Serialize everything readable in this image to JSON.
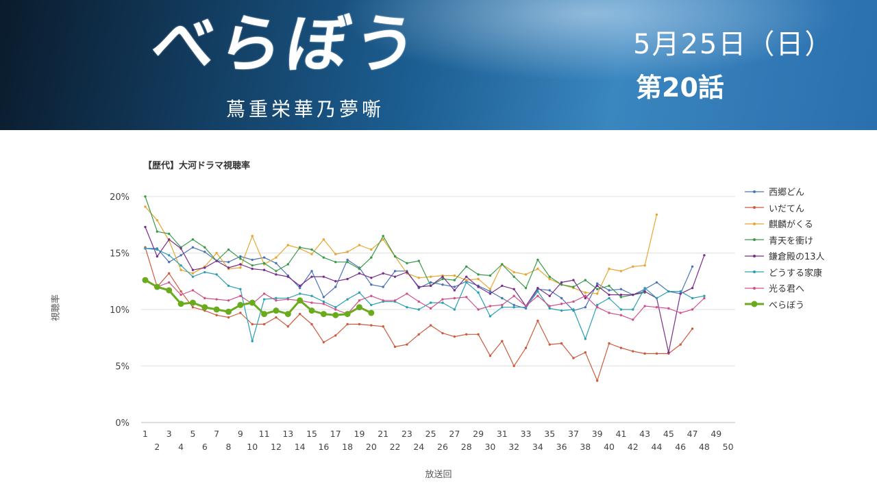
{
  "header": {
    "show_title": "べらぼう",
    "show_subtitle": "蔦重栄華乃夢噺",
    "air_date": "5月25日（日）",
    "episode": "第20話"
  },
  "chart_data": {
    "type": "line",
    "title": "【歴代】大河ドラマ視聴率",
    "xlabel": "放送回",
    "ylabel": "視聴率",
    "ylim": [
      0,
      20
    ],
    "y_ticks": [
      "0%",
      "5%",
      "10%",
      "15%",
      "20%"
    ],
    "x_ticks": [
      "1",
      "2",
      "3",
      "4",
      "5",
      "6",
      "7",
      "8",
      "9",
      "10",
      "11",
      "12",
      "13",
      "14",
      "15",
      "16",
      "17",
      "18",
      "19",
      "20",
      "21",
      "22",
      "23",
      "24",
      "25",
      "26",
      "27",
      "28",
      "29",
      "30",
      "31",
      "32",
      "33",
      "34",
      "35",
      "36",
      "37",
      "38",
      "39",
      "40",
      "41",
      "42",
      "43",
      "44",
      "45",
      "46",
      "47",
      "48",
      "49",
      "50"
    ],
    "grid": true,
    "legend_position": "right",
    "series": [
      {
        "name": "西郷どん",
        "color": "#4a74b8",
        "values": [
          15.4,
          15.4,
          14.2,
          14.8,
          15.5,
          15.1,
          14.3,
          14.2,
          14.7,
          14.4,
          14.6,
          14.1,
          13.0,
          11.9,
          13.4,
          11.1,
          12.0,
          14.4,
          13.7,
          12.2,
          12.0,
          13.4,
          13.4,
          11.9,
          12.4,
          12.2,
          12.0,
          12.5,
          12.1,
          11.6,
          11.0,
          10.4,
          10.1,
          11.8,
          11.7,
          11.0,
          9.9,
          10.2,
          12.3,
          11.7,
          11.8,
          11.3,
          11.8,
          12.4,
          11.6,
          11.4,
          13.8
        ]
      },
      {
        "name": "いだてん",
        "color": "#cd5a3c",
        "values": [
          15.5,
          12.0,
          13.2,
          11.6,
          10.2,
          9.9,
          9.5,
          9.3,
          9.7,
          8.7,
          8.7,
          9.3,
          8.5,
          9.6,
          8.7,
          7.1,
          7.7,
          8.7,
          8.7,
          8.6,
          8.5,
          6.7,
          6.9,
          7.8,
          8.6,
          7.9,
          7.6,
          7.8,
          7.8,
          5.9,
          7.2,
          5.0,
          6.6,
          9.0,
          6.9,
          7.0,
          5.7,
          6.2,
          3.7,
          7.0,
          6.6,
          6.3,
          6.1,
          6.1,
          6.1,
          6.9,
          8.3
        ]
      },
      {
        "name": "麒麟がくる",
        "color": "#e8a530",
        "values": [
          19.1,
          17.9,
          16.1,
          13.5,
          13.2,
          13.8,
          15.0,
          13.6,
          13.7,
          16.5,
          14.0,
          14.6,
          15.7,
          15.4,
          14.9,
          16.2,
          14.9,
          15.1,
          15.7,
          15.3,
          16.2,
          14.7,
          13.2,
          12.8,
          12.9,
          13.0,
          13.0,
          12.6,
          12.7,
          11.8,
          14.0,
          13.3,
          13.1,
          13.6,
          12.7,
          12.2,
          11.9,
          11.5,
          11.4,
          13.6,
          13.4,
          13.8,
          13.9,
          18.4
        ]
      },
      {
        "name": "青天を衝け",
        "color": "#3a9a4a",
        "values": [
          20.0,
          16.9,
          16.7,
          15.5,
          16.2,
          15.5,
          14.3,
          15.3,
          14.5,
          13.9,
          14.1,
          13.4,
          14.0,
          15.5,
          15.3,
          14.6,
          14.2,
          14.2,
          13.6,
          14.6,
          16.5,
          14.7,
          14.1,
          14.3,
          12.1,
          12.7,
          12.6,
          13.8,
          13.1,
          13.0,
          14.0,
          12.9,
          11.9,
          14.4,
          12.9,
          12.2,
          12.0,
          12.6,
          11.8,
          12.1,
          11.1,
          11.3,
          11.5
        ]
      },
      {
        "name": "鎌倉殿の13人",
        "color": "#7a2c8c",
        "values": [
          17.3,
          14.7,
          16.2,
          15.4,
          13.5,
          13.7,
          14.3,
          13.7,
          14.0,
          13.6,
          13.5,
          13.1,
          12.9,
          12.1,
          12.9,
          12.9,
          12.5,
          12.7,
          13.2,
          12.8,
          13.2,
          12.9,
          13.3,
          12.0,
          12.1,
          12.9,
          11.7,
          12.9,
          12.0,
          11.4,
          12.1,
          11.8,
          10.3,
          11.9,
          11.2,
          12.4,
          12.6,
          11.0,
          12.1,
          11.3,
          11.3,
          11.3,
          11.6,
          11.0,
          6.2,
          11.4,
          11.9,
          14.8
        ]
      },
      {
        "name": "どうする家康",
        "color": "#2a9fb4",
        "values": [
          15.4,
          15.3,
          14.8,
          13.9,
          12.9,
          13.3,
          13.1,
          12.1,
          11.8,
          7.2,
          10.9,
          11.0,
          11.0,
          11.4,
          11.2,
          10.7,
          10.2,
          10.9,
          11.5,
          10.4,
          10.7,
          10.7,
          10.2,
          10.0,
          10.6,
          10.6,
          10.0,
          12.4,
          11.5,
          9.4,
          10.2,
          10.2,
          10.2,
          11.6,
          10.1,
          9.9,
          10.0,
          7.4,
          10.4,
          11.0,
          10.0,
          10.0,
          11.9,
          11.0,
          11.6,
          11.6,
          11.0,
          11.2
        ]
      },
      {
        "name": "光る君へ",
        "color": "#d2508a",
        "values": [
          12.7,
          12.0,
          12.4,
          11.3,
          11.7,
          11.0,
          10.9,
          10.8,
          11.2,
          10.5,
          11.4,
          10.8,
          10.9,
          10.8,
          10.6,
          10.5,
          10.0,
          9.6,
          10.8,
          11.2,
          10.8,
          10.8,
          11.4,
          10.7,
          10.1,
          10.9,
          11.0,
          11.1,
          10.0,
          10.3,
          10.4,
          11.2,
          10.3,
          11.2,
          10.3,
          10.5,
          10.7,
          11.2,
          10.2,
          9.7,
          9.5,
          9.1,
          10.3,
          10.2,
          10.1,
          9.7,
          10.0,
          11.0
        ]
      },
      {
        "name": "べらぼう",
        "color": "#6aab1e",
        "values": [
          12.6,
          12.0,
          11.7,
          10.5,
          10.6,
          10.2,
          10.0,
          9.8,
          10.4,
          10.6,
          9.6,
          9.9,
          9.6,
          10.8,
          9.9,
          9.6,
          9.5,
          9.6,
          10.2,
          9.7
        ]
      }
    ]
  }
}
